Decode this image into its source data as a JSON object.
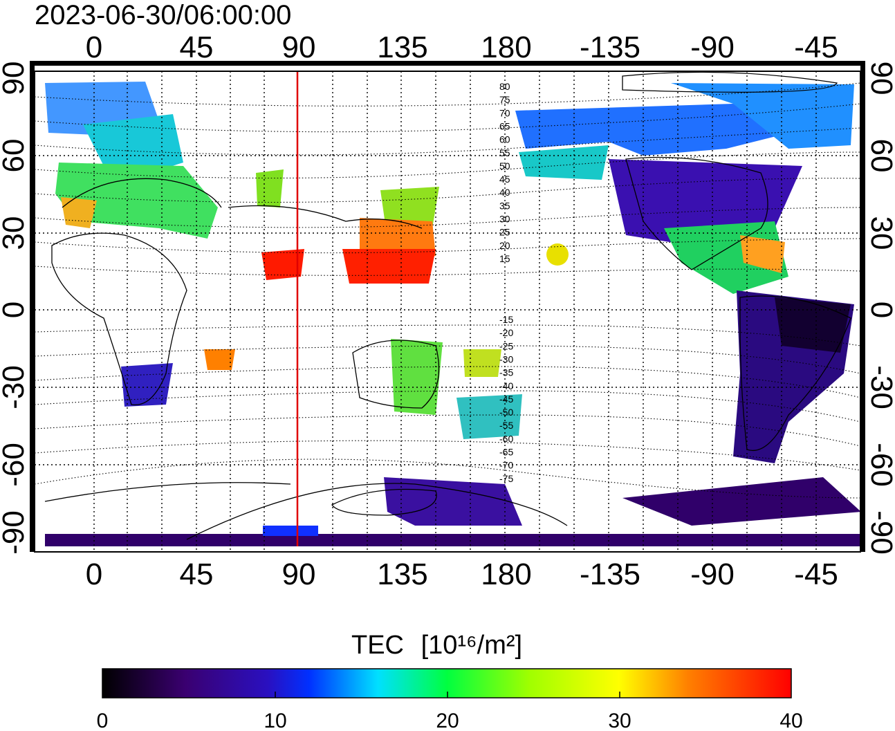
{
  "timestamp": "2023-06-30/06:00:00",
  "lon_ticks": [
    "0",
    "45",
    "90",
    "135",
    "180",
    "-135",
    "-90",
    "-45"
  ],
  "lat_ticks": [
    "90",
    "60",
    "30",
    "0",
    "-30",
    "-60",
    "-90"
  ],
  "contour_labels": [
    "80",
    "75",
    "70",
    "65",
    "60",
    "55",
    "50",
    "45",
    "40",
    "35",
    "30",
    "25",
    "20",
    "15",
    "-15",
    "-20",
    "-25",
    "-30",
    "-35",
    "-40",
    "-45",
    "-50",
    "-55",
    "-60",
    "-65",
    "-70",
    "-75"
  ],
  "colorbar": {
    "label": "TEC",
    "unit": "[10¹⁶/m²]",
    "ticks": [
      "0",
      "10",
      "20",
      "30",
      "40"
    ],
    "min": 0,
    "max": 40
  },
  "marker_line_longitude": 90,
  "colors": {
    "marker_line": "#e00000",
    "grid": "#000000"
  }
}
